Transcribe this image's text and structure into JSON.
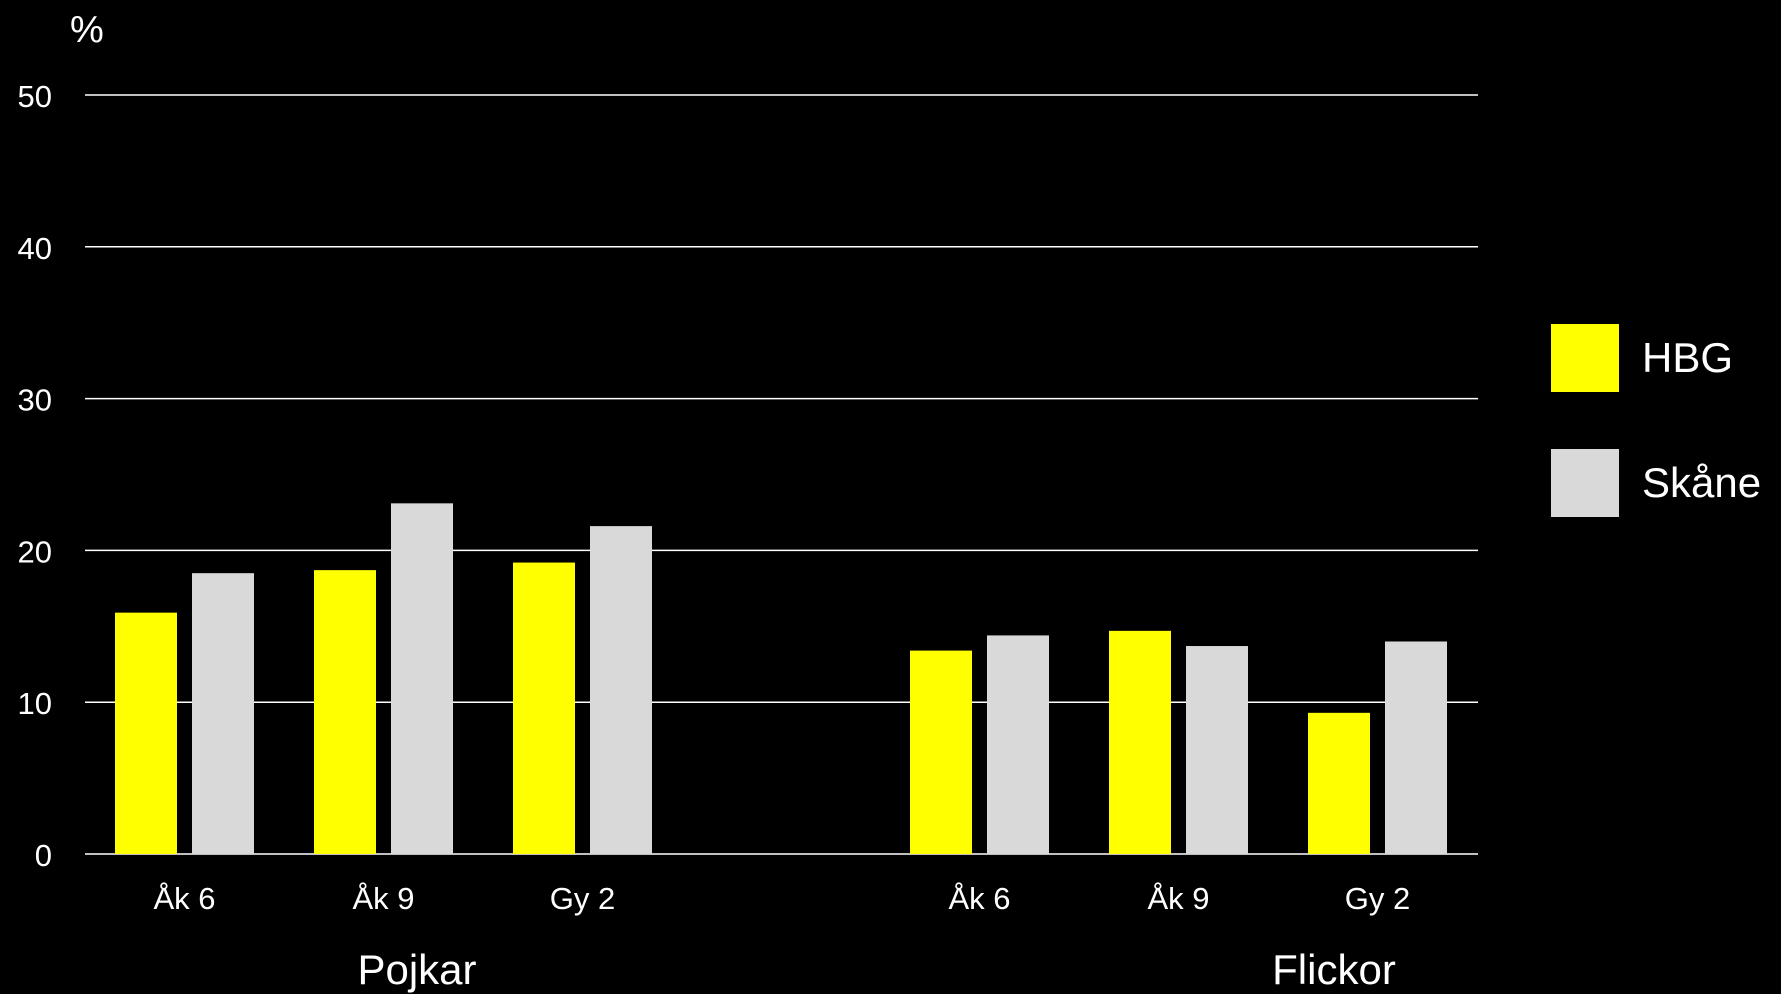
{
  "chart_data": {
    "type": "bar",
    "ylabel": "%",
    "ylim": [
      0,
      50
    ],
    "yticks": [
      0,
      10,
      20,
      30,
      40,
      50
    ],
    "grid": true,
    "legend_position": "right",
    "groups": [
      {
        "label": "Pojkar",
        "categories": [
          "Åk 6",
          "Åk 9",
          "Gy 2"
        ]
      },
      {
        "label": "Flickor",
        "categories": [
          "Åk 6",
          "Åk 9",
          "Gy 2"
        ]
      }
    ],
    "series": [
      {
        "name": "HBG",
        "color": "#ffff00",
        "values": [
          15.9,
          18.7,
          19.2,
          13.4,
          14.7,
          9.3
        ]
      },
      {
        "name": "Skåne",
        "color": "#d9d9d9",
        "values": [
          18.5,
          23.1,
          21.6,
          14.4,
          13.7,
          14.0
        ]
      }
    ],
    "background": "#000000",
    "text_color": "#ffffff",
    "grid_color": "#ffffff"
  }
}
